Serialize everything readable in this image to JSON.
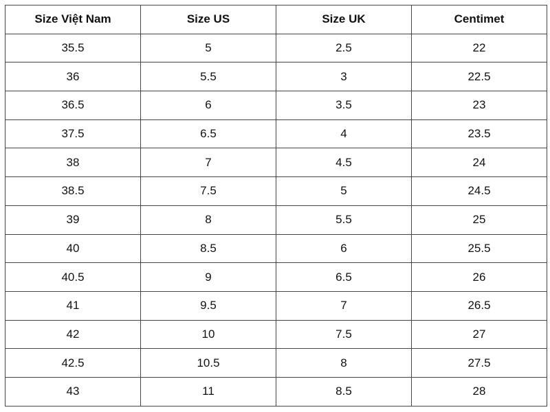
{
  "table": {
    "header": [
      "Size Việt Nam",
      "Size US",
      "Size UK",
      "Centimet"
    ],
    "rows": [
      [
        "35.5",
        "5",
        "2.5",
        "22"
      ],
      [
        "36",
        "5.5",
        "3",
        "22.5"
      ],
      [
        "36.5",
        "6",
        "3.5",
        "23"
      ],
      [
        "37.5",
        "6.5",
        "4",
        "23.5"
      ],
      [
        "38",
        "7",
        "4.5",
        "24"
      ],
      [
        "38.5",
        "7.5",
        "5",
        "24.5"
      ],
      [
        "39",
        "8",
        "5.5",
        "25"
      ],
      [
        "40",
        "8.5",
        "6",
        "25.5"
      ],
      [
        "40.5",
        "9",
        "6.5",
        "26"
      ],
      [
        "41",
        "9.5",
        "7",
        "26.5"
      ],
      [
        "42",
        "10",
        "7.5",
        "27"
      ],
      [
        "42.5",
        "10.5",
        "8",
        "27.5"
      ],
      [
        "43",
        "11",
        "8.5",
        "28"
      ]
    ]
  }
}
